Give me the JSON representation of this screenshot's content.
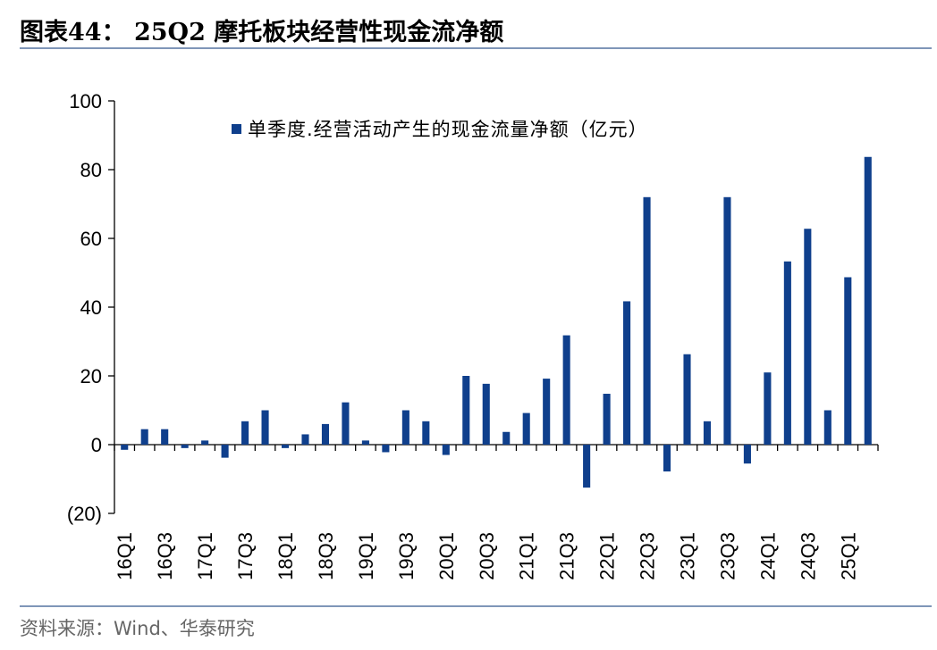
{
  "title": "图表44：  25Q2 摩托板块经营性现金流净额",
  "source": "资料来源：Wind、华泰研究",
  "chart_data": {
    "type": "bar",
    "legend": "单季度.经营活动产生的现金流量净额（亿元）",
    "legend_position": "top",
    "bar_color": "#0f3f8c",
    "ylim": [
      -20,
      100
    ],
    "yticks": [
      -20,
      0,
      20,
      40,
      60,
      80,
      100
    ],
    "ytick_labels": [
      "(20)",
      "0",
      "20",
      "40",
      "60",
      "80",
      "100"
    ],
    "categories": [
      "16Q1",
      "16Q2",
      "16Q3",
      "16Q4",
      "17Q1",
      "17Q2",
      "17Q3",
      "17Q4",
      "18Q1",
      "18Q2",
      "18Q3",
      "18Q4",
      "19Q1",
      "19Q2",
      "19Q3",
      "19Q4",
      "20Q1",
      "20Q2",
      "20Q3",
      "20Q4",
      "21Q1",
      "21Q2",
      "21Q3",
      "21Q4",
      "22Q1",
      "22Q2",
      "22Q3",
      "22Q4",
      "23Q1",
      "23Q2",
      "23Q3",
      "23Q4",
      "24Q1",
      "24Q2",
      "24Q3",
      "24Q4",
      "25Q1",
      "25Q2"
    ],
    "xtick_labels": [
      "16Q1",
      "",
      "16Q3",
      "",
      "17Q1",
      "",
      "17Q3",
      "",
      "18Q1",
      "",
      "18Q3",
      "",
      "19Q1",
      "",
      "19Q3",
      "",
      "20Q1",
      "",
      "20Q3",
      "",
      "21Q1",
      "",
      "21Q3",
      "",
      "22Q1",
      "",
      "22Q3",
      "",
      "23Q1",
      "",
      "23Q3",
      "",
      "24Q1",
      "",
      "24Q3",
      "",
      "25Q1",
      ""
    ],
    "values": [
      -1.5,
      4.5,
      4.5,
      -1.0,
      1.2,
      -3.8,
      6.8,
      10.0,
      -1.0,
      3.0,
      6.0,
      12.3,
      1.2,
      -2.2,
      10.0,
      6.8,
      -3.0,
      20.0,
      17.7,
      3.7,
      9.2,
      19.2,
      31.8,
      -12.5,
      14.8,
      41.7,
      72.0,
      -7.8,
      26.3,
      6.8,
      72.0,
      -5.5,
      21.0,
      53.3,
      62.8,
      10.0,
      48.7,
      83.7
    ]
  }
}
